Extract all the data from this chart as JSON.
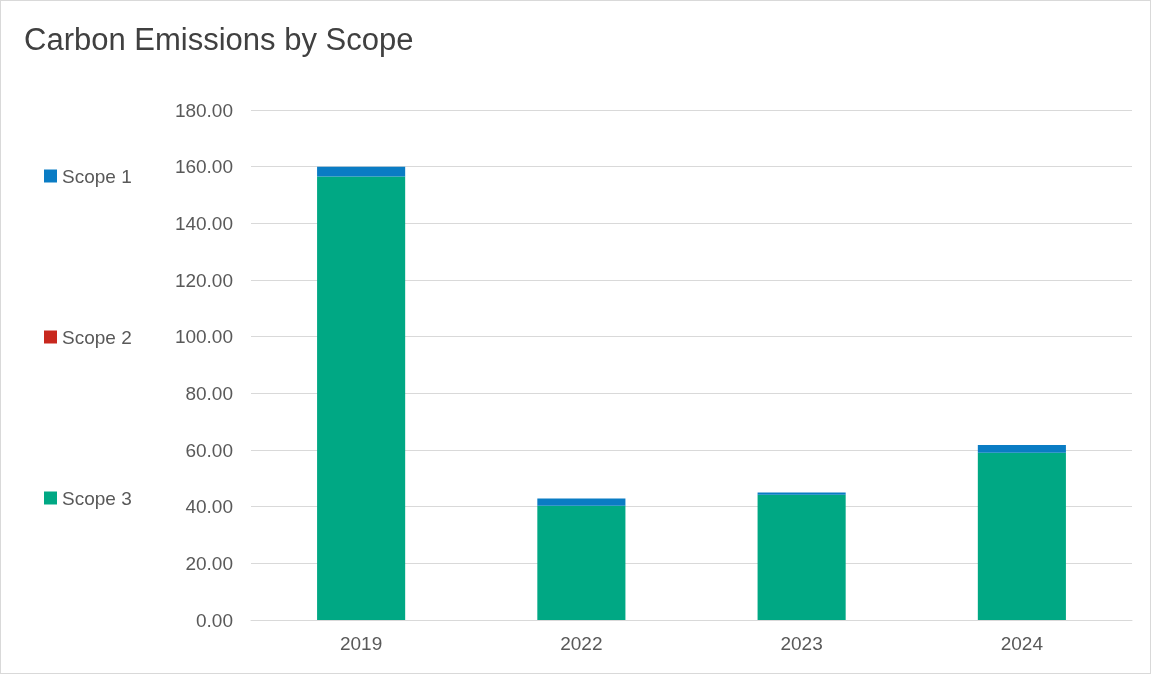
{
  "chart_data": {
    "type": "bar",
    "title": "Carbon Emissions by Scope",
    "categories": [
      "2019",
      "2022",
      "2023",
      "2024"
    ],
    "series": [
      {
        "name": "Scope 3",
        "color": "#00a884",
        "values": [
          156.5,
          40.3,
          44.2,
          59.0
        ]
      },
      {
        "name": "Scope 2",
        "color": "#c8281e",
        "values": [
          0,
          0,
          0,
          0
        ]
      },
      {
        "name": "Scope 1",
        "color": "#0a7cc4",
        "values": [
          3.5,
          2.6,
          0.8,
          2.8
        ]
      }
    ],
    "stacked": true,
    "ylim": [
      0,
      180
    ],
    "yticks": [
      {
        "value": 0,
        "label": "0.00"
      },
      {
        "value": 20,
        "label": "20.00"
      },
      {
        "value": 40,
        "label": "40.00"
      },
      {
        "value": 60,
        "label": "60.00"
      },
      {
        "value": 80,
        "label": "80.00"
      },
      {
        "value": 100,
        "label": "100.00"
      },
      {
        "value": 120,
        "label": "120.00"
      },
      {
        "value": 140,
        "label": "140.00"
      },
      {
        "value": 160,
        "label": "160.00"
      },
      {
        "value": 180,
        "label": "180.00"
      }
    ],
    "grid": "y",
    "legend": "left"
  }
}
